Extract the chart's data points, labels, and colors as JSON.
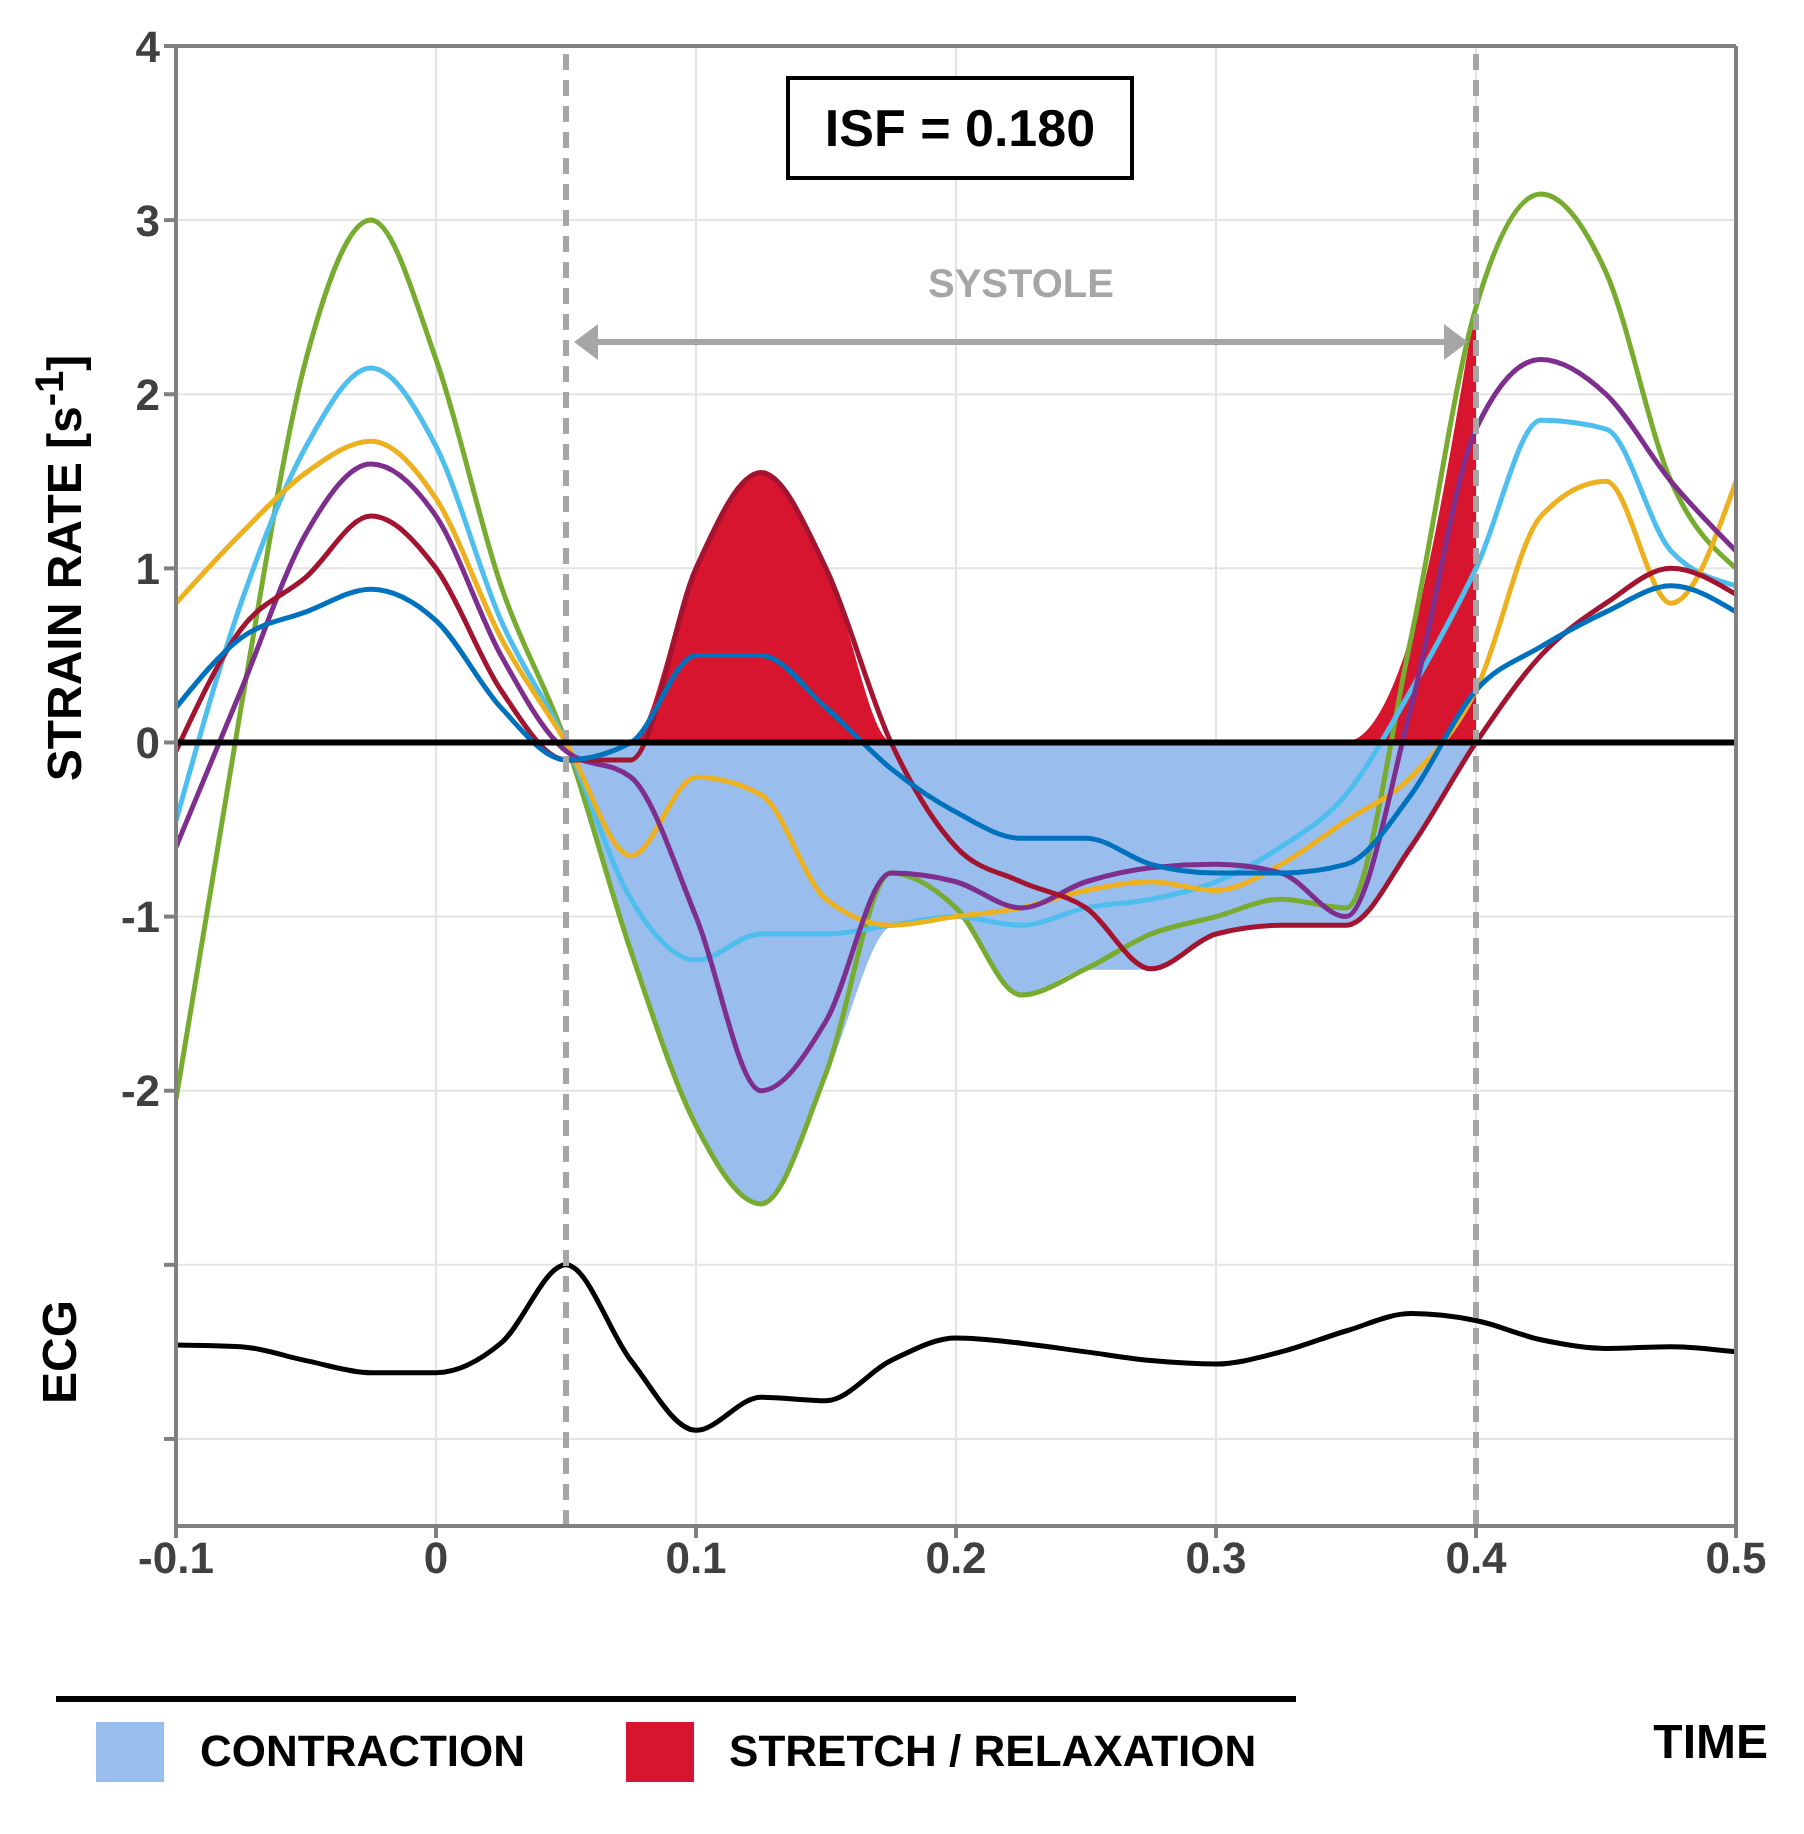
{
  "chart_data": {
    "type": "line",
    "xlabel": "TIME",
    "ylabel": "STRAIN RATE [s$^{-1}$]",
    "annotations": [
      "ISF = 0.180",
      "SYSTOLE",
      "ECG"
    ],
    "x": [
      -0.1,
      -0.075,
      -0.05,
      -0.025,
      0,
      0.025,
      0.05,
      0.075,
      0.1,
      0.125,
      0.15,
      0.175,
      0.2,
      0.225,
      0.25,
      0.275,
      0.3,
      0.325,
      0.35,
      0.375,
      0.4,
      0.425,
      0.45,
      0.475,
      0.5
    ],
    "series": [
      {
        "name": "CONTRACTION",
        "type": "area",
        "color": "#99bdec",
        "values": [
          null,
          null,
          null,
          null,
          null,
          null,
          0,
          -1.2,
          -2.2,
          -2.65,
          -1.9,
          -1.05,
          -1.0,
          -1.45,
          -1.3,
          -1.3,
          -1.1,
          -1.05,
          -1.05,
          -0.6,
          0,
          null,
          null,
          null,
          null
        ]
      },
      {
        "name": "STRETCH / RELAXATION",
        "type": "area",
        "color": "#d7152f",
        "values": [
          null,
          null,
          null,
          null,
          null,
          null,
          0,
          0,
          1.0,
          1.55,
          1.0,
          0,
          0,
          0,
          0,
          0,
          0,
          0,
          0,
          0.6,
          2.5,
          null,
          null,
          null,
          null
        ]
      },
      {
        "color": "#77ac30",
        "values": [
          -2.05,
          0.2,
          2.2,
          3.0,
          2.2,
          0.9,
          0,
          -1.2,
          -2.2,
          -2.65,
          -1.9,
          -0.75,
          -0.95,
          -1.45,
          -1.3,
          -1.1,
          -1.0,
          -0.9,
          -0.95,
          0.6,
          2.5,
          3.15,
          2.7,
          1.5,
          1.0
        ]
      },
      {
        "color": "#4dbeee",
        "values": [
          -0.45,
          0.8,
          1.7,
          2.15,
          1.7,
          0.7,
          0,
          -0.9,
          -1.25,
          -1.1,
          -1.1,
          -1.05,
          -1.0,
          -1.05,
          -0.95,
          -0.9,
          -0.8,
          -0.6,
          -0.3,
          0.3,
          1.0,
          1.85,
          1.8,
          1.1,
          0.9
        ]
      },
      {
        "color": "#edb120",
        "values": [
          0.8,
          1.2,
          1.55,
          1.73,
          1.4,
          0.6,
          0,
          -0.65,
          -0.2,
          -0.3,
          -0.9,
          -1.05,
          -1.0,
          -0.95,
          -0.85,
          -0.8,
          -0.85,
          -0.7,
          -0.45,
          -0.2,
          0.3,
          1.3,
          1.5,
          0.8,
          1.5
        ]
      },
      {
        "color": "#7e2f8e",
        "values": [
          -0.6,
          0.3,
          1.2,
          1.6,
          1.3,
          0.5,
          -0.05,
          -0.2,
          -1.0,
          -2.0,
          -1.6,
          -0.75,
          -0.8,
          -0.95,
          -0.8,
          -0.72,
          -0.7,
          -0.75,
          -1.0,
          0.2,
          1.8,
          2.2,
          2.0,
          1.5,
          1.1
        ]
      },
      {
        "color": "#a2142f",
        "values": [
          -0.05,
          0.65,
          0.95,
          1.3,
          1.0,
          0.3,
          -0.1,
          -0.1,
          1.0,
          1.55,
          1.0,
          0,
          -0.6,
          -0.8,
          -0.95,
          -1.3,
          -1.1,
          -1.05,
          -1.05,
          -0.6,
          0,
          0.5,
          0.8,
          1.0,
          0.85
        ]
      },
      {
        "color": "#0072bd",
        "values": [
          0.2,
          0.6,
          0.75,
          0.88,
          0.7,
          0.2,
          -0.1,
          0,
          0.5,
          0.5,
          0.2,
          -0.15,
          -0.4,
          -0.55,
          -0.55,
          -0.7,
          -0.75,
          -0.75,
          -0.7,
          -0.3,
          0.3,
          0.55,
          0.75,
          0.9,
          0.75
        ]
      },
      {
        "color": "#000000",
        "values": [
          -3.46,
          -3.47,
          -3.55,
          -3.62,
          -3.62,
          -3.45,
          -3.0,
          -3.55,
          -3.95,
          -3.76,
          -3.78,
          -3.55,
          -3.42,
          -3.45,
          -3.5,
          -3.55,
          -3.57,
          -3.5,
          -3.38,
          -3.28,
          -3.32,
          -3.43,
          -3.48,
          -3.47,
          -3.5
        ]
      }
    ],
    "xlim": [
      -0.1,
      0.5
    ],
    "xticks": [
      -0.1,
      0,
      0.1,
      0.2,
      0.3,
      0.4,
      0.5
    ],
    "ylim": [
      -4.5,
      4
    ],
    "yticks": [
      {
        "value": -4,
        "label": null
      },
      {
        "value": -3,
        "label": null
      },
      -2,
      -1,
      0,
      1,
      2,
      3,
      4
    ],
    "ref_lines": [
      {
        "axis": "x",
        "value": 0.05,
        "color": "#a6a6a6",
        "line_style": "dashed"
      },
      {
        "axis": "x",
        "value": 0.4,
        "color": "#a6a6a6",
        "line_style": "dashed"
      },
      {
        "axis": "y",
        "value": 0,
        "color": "#000000",
        "line_style": "solid"
      }
    ],
    "grid": true,
    "legend": "bottom"
  }
}
